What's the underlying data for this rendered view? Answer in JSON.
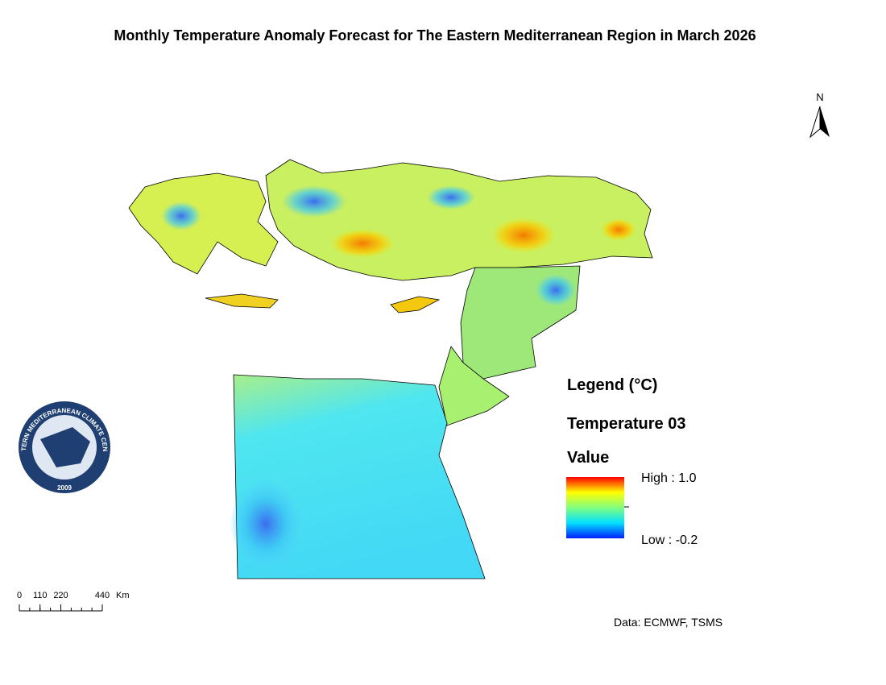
{
  "header": {
    "title": "Monthly Temperature Anomaly Forecast  for The Eastern Mediterranean Region in March 2026"
  },
  "north_arrow": {
    "label": "N"
  },
  "legend": {
    "title": "Legend (°C)",
    "layer": "Temperature 03",
    "field": "Value",
    "high": "High : 1.0",
    "low": "Low : -0.2"
  },
  "scale_bar": {
    "ticks": [
      0,
      110,
      220,
      440
    ],
    "unit": "Km"
  },
  "credit": "Data: ECMWF, TSMS",
  "logo": {
    "name": "EASTERN MEDITERRANEAN CLIMATE CENTRE",
    "year": "2009"
  }
}
